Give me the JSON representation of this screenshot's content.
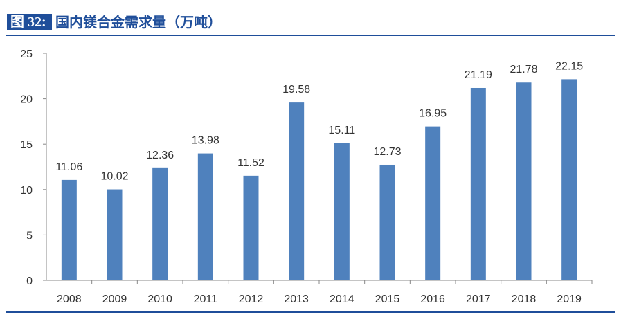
{
  "header": {
    "figure_label": "图 32:",
    "title": "国内镁合金需求量（万吨）"
  },
  "colors": {
    "accent": "#1f4e9a",
    "bar": "#4f81bd",
    "axis": "#888888",
    "text": "#333333"
  },
  "chart_data": {
    "type": "bar",
    "title": "国内镁合金需求量（万吨）",
    "xlabel": "",
    "ylabel": "",
    "categories": [
      "2008",
      "2009",
      "2010",
      "2011",
      "2012",
      "2013",
      "2014",
      "2015",
      "2016",
      "2017",
      "2018",
      "2019"
    ],
    "values": [
      11.06,
      10.02,
      12.36,
      13.98,
      11.52,
      19.58,
      15.11,
      12.73,
      16.95,
      21.19,
      21.78,
      22.15
    ],
    "value_labels": [
      "11.06",
      "10.02",
      "12.36",
      "13.98",
      "11.52",
      "19.58",
      "15.11",
      "12.73",
      "16.95",
      "21.19",
      "21.78",
      "22.15"
    ],
    "ylim": [
      0,
      25
    ],
    "yticks": [
      0,
      5,
      10,
      15,
      20,
      25
    ],
    "grid": false,
    "legend": "none"
  }
}
